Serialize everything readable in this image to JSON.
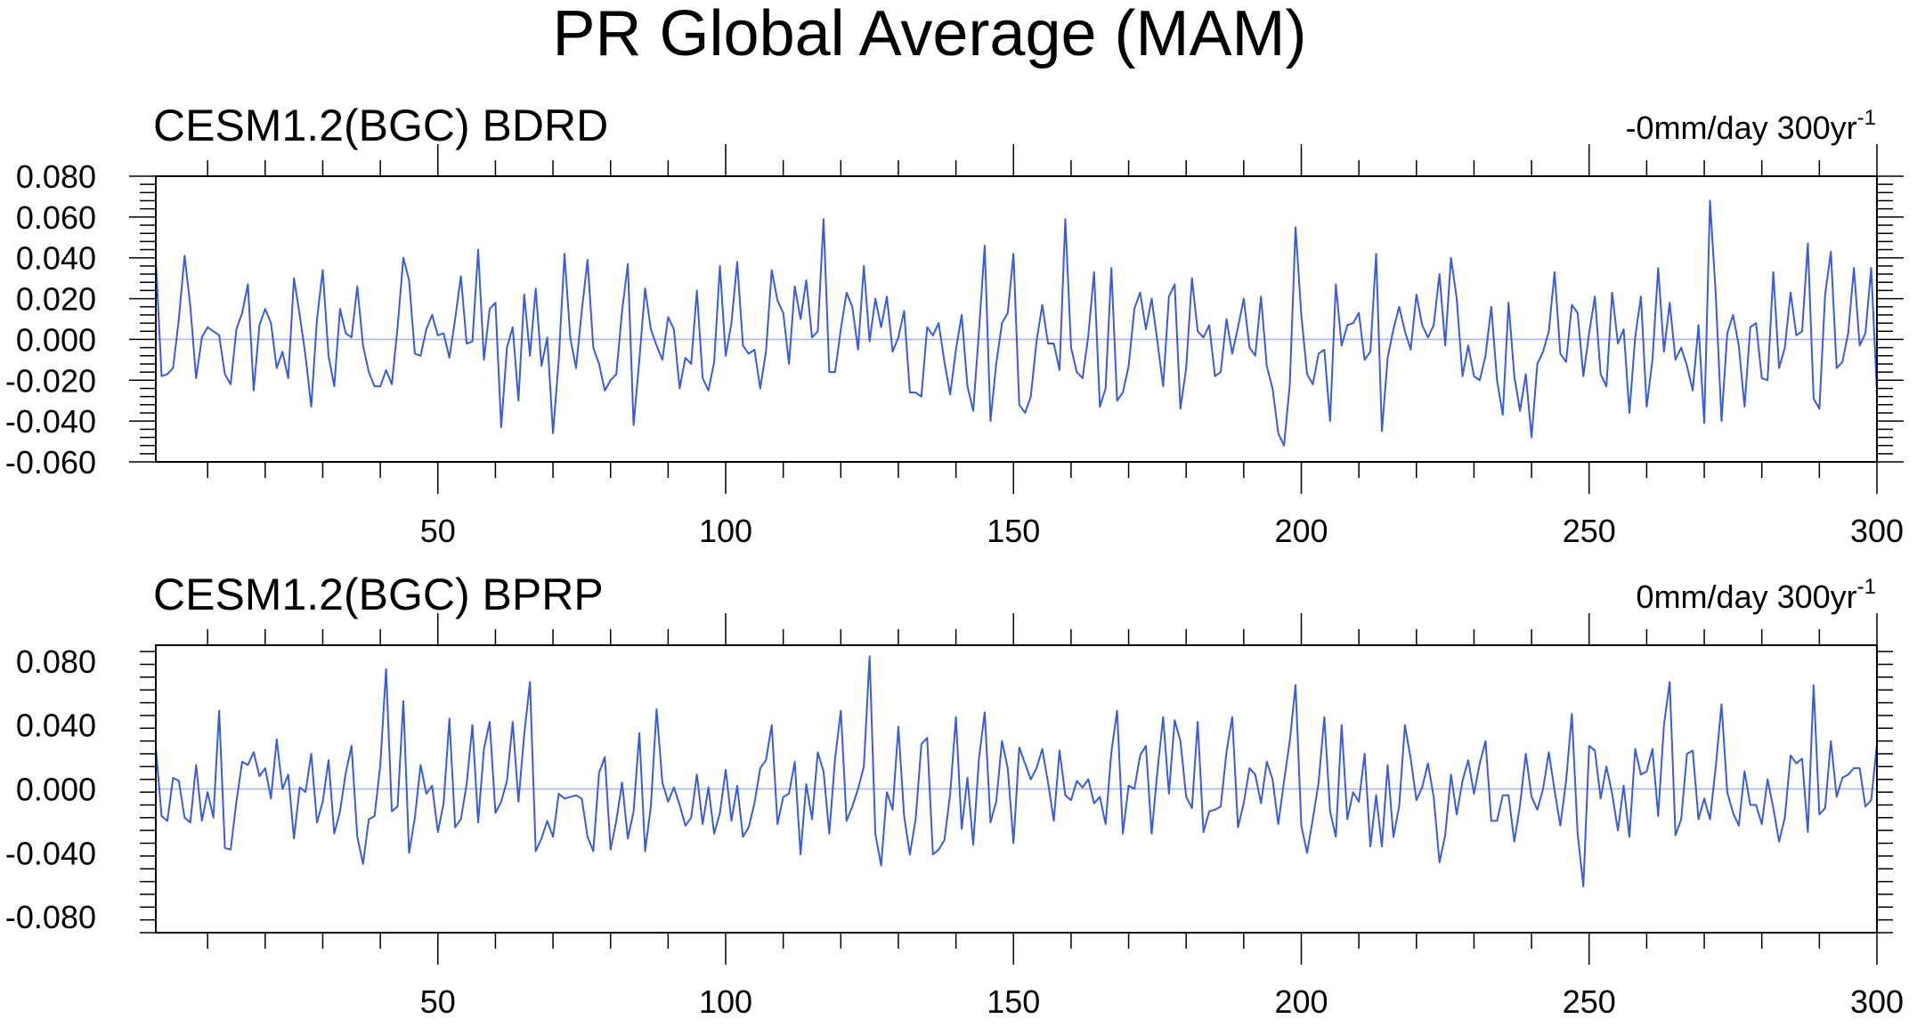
{
  "title": "PR Global Average (MAM)",
  "colors": {
    "line": "#3b5bd9",
    "zero_line": "#a6b4e6",
    "axis": "#000000"
  },
  "chart_data": [
    {
      "type": "line",
      "title": "CESM1.2(BGC) BDRD",
      "trend_label": "-0mm/day 300yr",
      "trend_superscript": "-1",
      "xlim": [
        1,
        300
      ],
      "ylim": [
        -0.06,
        0.08
      ],
      "xticks": [
        50,
        100,
        150,
        200,
        250,
        300
      ],
      "x_tick_labels": [
        "50",
        "100",
        "150",
        "200",
        "250",
        "300"
      ],
      "yticks": [
        -0.06,
        -0.04,
        -0.02,
        0.0,
        0.02,
        0.04,
        0.06,
        0.08
      ],
      "y_tick_labels": [
        "-0.060",
        "-0.040",
        "-0.020",
        "0.000",
        "0.020",
        "0.040",
        "0.060",
        "0.080"
      ],
      "grid": false,
      "reference_line": 0,
      "series": [
        {
          "x_start": 1,
          "x_step": 1,
          "values": [
            0.039,
            -0.018,
            -0.017,
            -0.014,
            0.01,
            0.041,
            0.016,
            -0.019,
            0.001,
            0.006,
            0.004,
            0.002,
            -0.017,
            -0.022,
            0.005,
            0.013,
            0.027,
            -0.025,
            0.007,
            0.015,
            0.008,
            -0.014,
            -0.006,
            -0.019,
            0.03,
            0.012,
            -0.008,
            -0.033,
            0.01,
            0.034,
            -0.008,
            -0.023,
            0.015,
            0.003,
            0.001,
            0.026,
            -0.003,
            -0.016,
            -0.023,
            -0.023,
            -0.015,
            -0.022,
            0.006,
            0.04,
            0.029,
            -0.007,
            -0.008,
            0.005,
            0.012,
            0.002,
            0.003,
            -0.009,
            0.01,
            0.031,
            -0.002,
            -0.001,
            0.044,
            -0.01,
            0.015,
            0.018,
            -0.043,
            -0.004,
            0.006,
            -0.03,
            0.022,
            -0.008,
            0.025,
            -0.013,
            0.001,
            -0.046,
            -0.01,
            0.042,
            0.001,
            -0.014,
            0.014,
            0.039,
            -0.004,
            -0.012,
            -0.025,
            -0.02,
            -0.017,
            0.014,
            0.037,
            -0.042,
            -0.01,
            0.025,
            0.005,
            -0.003,
            -0.01,
            0.011,
            0.005,
            -0.024,
            -0.009,
            -0.012,
            0.024,
            -0.019,
            -0.025,
            -0.011,
            0.036,
            -0.008,
            0.008,
            0.038,
            -0.003,
            -0.007,
            -0.005,
            -0.024,
            -0.006,
            0.034,
            0.019,
            0.013,
            -0.012,
            0.026,
            0.01,
            0.029,
            0.001,
            0.004,
            0.059,
            -0.016,
            -0.016,
            0.005,
            0.023,
            0.016,
            -0.005,
            0.036,
            -0.001,
            0.02,
            0.006,
            0.021,
            -0.006,
            0.001,
            0.014,
            -0.026,
            -0.026,
            -0.028,
            0.006,
            0.002,
            0.008,
            -0.011,
            -0.027,
            -0.005,
            0.012,
            -0.023,
            -0.035,
            0.004,
            0.046,
            -0.04,
            -0.012,
            0.008,
            0.013,
            0.042,
            -0.032,
            -0.036,
            -0.028,
            -0.001,
            0.017,
            -0.002,
            -0.002,
            -0.015,
            0.059,
            -0.004,
            -0.016,
            -0.019,
            0.002,
            0.033,
            -0.033,
            -0.024,
            0.035,
            -0.03,
            -0.026,
            -0.013,
            0.015,
            0.023,
            0.005,
            0.02,
            -0.001,
            -0.023,
            0.021,
            0.027,
            -0.034,
            -0.014,
            0.03,
            0.004,
            0.001,
            0.007,
            -0.018,
            -0.016,
            0.01,
            -0.007,
            0.006,
            0.02,
            -0.004,
            -0.008,
            0.021,
            -0.013,
            -0.024,
            -0.046,
            -0.052,
            -0.022,
            0.055,
            0.012,
            -0.017,
            -0.022,
            -0.007,
            -0.005,
            -0.04,
            0.027,
            -0.003,
            0.007,
            0.008,
            0.013,
            -0.01,
            -0.006,
            0.042,
            -0.045,
            -0.009,
            0.005,
            0.016,
            0.004,
            -0.005,
            0.022,
            0.007,
            0.001,
            0.007,
            0.032,
            -0.003,
            0.04,
            0.02,
            -0.018,
            -0.003,
            -0.018,
            -0.02,
            -0.008,
            0.016,
            -0.02,
            -0.037,
            0.018,
            -0.018,
            -0.035,
            -0.017,
            -0.048,
            -0.012,
            -0.006,
            0.004,
            0.033,
            -0.007,
            -0.011,
            0.017,
            0.013,
            -0.018,
            0.003,
            0.021,
            -0.017,
            -0.023,
            0.023,
            -0.002,
            0.005,
            -0.036,
            0.001,
            0.021,
            -0.033,
            -0.01,
            0.035,
            -0.006,
            0.018,
            -0.01,
            -0.004,
            -0.013,
            -0.025,
            0.007,
            -0.041,
            0.068,
            0.022,
            -0.04,
            0.003,
            0.012,
            -0.003,
            -0.033,
            0.006,
            0.008,
            -0.019,
            -0.02,
            0.033,
            -0.014,
            -0.004,
            0.023,
            0.002,
            0.004,
            0.047,
            -0.029,
            -0.034,
            0.022,
            0.043,
            -0.014,
            -0.011,
            0.003,
            0.035,
            -0.003,
            0.003,
            0.035,
            -0.026
          ]
        }
      ]
    },
    {
      "type": "line",
      "title": "CESM1.2(BGC) BPRP",
      "trend_label": "0mm/day 300yr",
      "trend_superscript": "-1",
      "xlim": [
        1,
        300
      ],
      "ylim": [
        -0.09,
        0.09
      ],
      "xticks": [
        50,
        100,
        150,
        200,
        250,
        300
      ],
      "x_tick_labels": [
        "50",
        "100",
        "150",
        "200",
        "250",
        "300"
      ],
      "yticks": [
        -0.08,
        -0.04,
        0.0,
        0.04,
        0.08
      ],
      "y_tick_labels": [
        "-0.080",
        "-0.040",
        "0.000",
        "0.040",
        "0.080"
      ],
      "grid": false,
      "reference_line": 0,
      "series": [
        {
          "x_start": 1,
          "x_step": 1,
          "values": [
            0.026,
            -0.017,
            -0.02,
            0.007,
            0.005,
            -0.018,
            -0.021,
            0.015,
            -0.02,
            -0.002,
            -0.018,
            0.049,
            -0.037,
            -0.038,
            -0.008,
            0.017,
            0.015,
            0.023,
            0.008,
            0.013,
            -0.006,
            0.031,
            0.0,
            0.009,
            -0.031,
            0.001,
            -0.002,
            0.022,
            -0.021,
            -0.008,
            0.018,
            -0.028,
            -0.014,
            0.01,
            0.027,
            -0.03,
            -0.047,
            -0.019,
            -0.017,
            0.015,
            0.075,
            -0.014,
            -0.011,
            0.055,
            -0.04,
            -0.018,
            0.015,
            -0.003,
            0.002,
            -0.027,
            -0.009,
            0.044,
            -0.024,
            -0.019,
            0.003,
            0.04,
            -0.021,
            0.025,
            0.042,
            -0.015,
            -0.008,
            0.005,
            0.042,
            -0.008,
            0.034,
            0.067,
            -0.039,
            -0.031,
            -0.02,
            -0.03,
            -0.003,
            -0.006,
            -0.005,
            -0.004,
            -0.006,
            -0.03,
            -0.039,
            0.01,
            0.02,
            -0.038,
            -0.02,
            0.004,
            -0.031,
            -0.014,
            0.035,
            -0.039,
            -0.011,
            0.05,
            0.004,
            -0.008,
            0.001,
            -0.01,
            -0.023,
            -0.018,
            0.009,
            -0.022,
            0.001,
            -0.028,
            -0.015,
            0.012,
            -0.02,
            0.002,
            -0.03,
            -0.024,
            -0.009,
            0.013,
            0.018,
            0.04,
            -0.022,
            -0.005,
            -0.003,
            0.017,
            -0.041,
            0.003,
            -0.019,
            0.023,
            0.011,
            -0.028,
            0.019,
            0.049,
            -0.02,
            -0.011,
            0.0,
            0.014,
            0.083,
            -0.028,
            -0.048,
            -0.002,
            -0.013,
            0.039,
            -0.017,
            -0.041,
            -0.019,
            0.028,
            0.032,
            -0.041,
            -0.038,
            -0.032,
            -0.003,
            0.045,
            -0.025,
            0.007,
            -0.035,
            0.019,
            0.048,
            -0.021,
            -0.008,
            0.03,
            0.013,
            -0.034,
            0.026,
            0.016,
            0.006,
            0.013,
            0.025,
            0.004,
            -0.02,
            0.024,
            -0.004,
            -0.007,
            0.005,
            0.001,
            0.006,
            -0.009,
            -0.005,
            -0.022,
            0.023,
            0.049,
            -0.028,
            0.002,
            0.0,
            0.021,
            0.027,
            -0.028,
            0.011,
            0.045,
            -0.003,
            0.043,
            0.03,
            -0.005,
            -0.012,
            0.042,
            -0.027,
            -0.014,
            -0.013,
            -0.011,
            0.023,
            0.045,
            -0.024,
            -0.009,
            0.013,
            0.009,
            -0.009,
            0.017,
            0.006,
            -0.022,
            0.005,
            0.03,
            0.065,
            -0.023,
            -0.04,
            -0.019,
            0.004,
            0.045,
            -0.014,
            -0.03,
            0.04,
            -0.019,
            -0.002,
            -0.008,
            0.022,
            -0.036,
            -0.004,
            -0.036,
            0.015,
            -0.03,
            -0.011,
            0.04,
            0.019,
            -0.007,
            0.001,
            0.016,
            -0.005,
            -0.046,
            -0.029,
            0.009,
            -0.016,
            0.005,
            0.018,
            -0.003,
            0.016,
            0.03,
            -0.02,
            -0.02,
            -0.004,
            -0.004,
            -0.033,
            -0.01,
            0.022,
            -0.005,
            -0.013,
            0.0,
            0.023,
            -0.001,
            -0.023,
            0.005,
            0.047,
            -0.028,
            -0.061,
            0.027,
            0.024,
            -0.006,
            0.014,
            -0.003,
            -0.026,
            0.002,
            -0.03,
            0.025,
            0.009,
            0.011,
            0.025,
            -0.017,
            0.04,
            0.067,
            -0.029,
            -0.019,
            0.022,
            0.024,
            -0.019,
            -0.006,
            -0.019,
            0.014,
            0.053,
            -0.002,
            -0.015,
            -0.023,
            0.011,
            -0.01,
            -0.01,
            -0.022,
            0.006,
            -0.012,
            -0.033,
            -0.018,
            0.021,
            0.016,
            0.019,
            -0.027,
            0.065,
            -0.016,
            -0.012,
            0.03,
            -0.005,
            0.007,
            0.009,
            0.013,
            0.013,
            -0.011,
            -0.007,
            0.028
          ]
        }
      ]
    }
  ]
}
